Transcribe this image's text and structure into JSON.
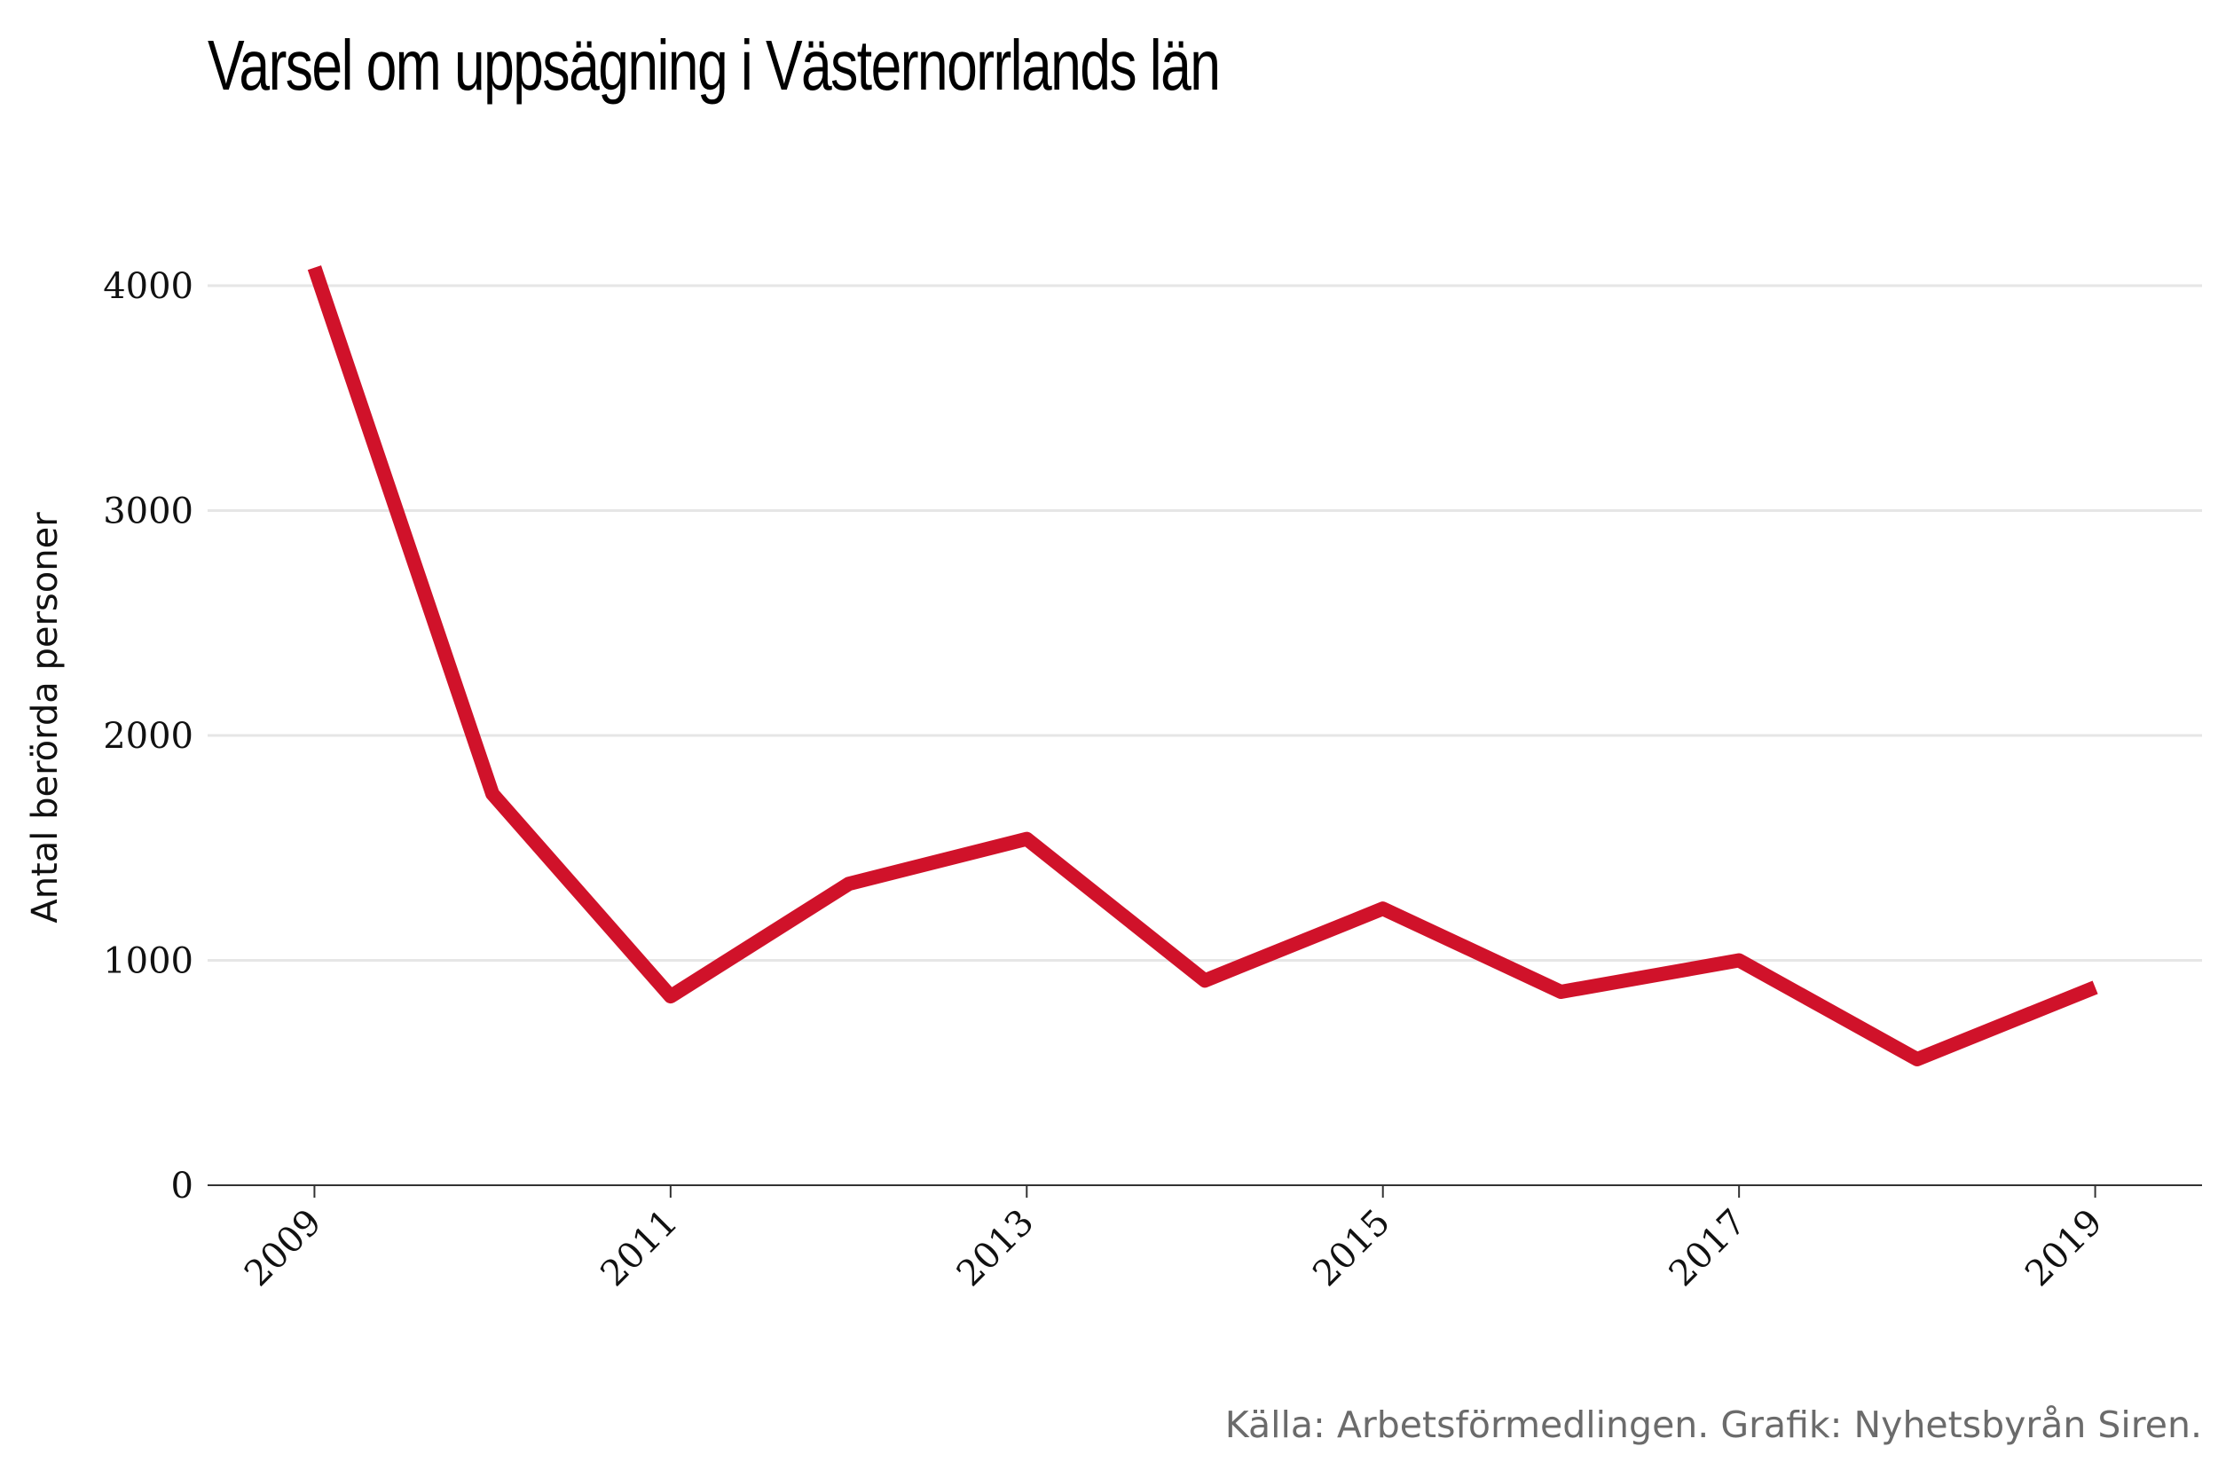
{
  "chart_data": {
    "type": "line",
    "title": "Varsel om uppsägning i Västernorrlands län",
    "ylabel": "Antal berörda personer",
    "xlabel": "",
    "x": [
      2009,
      2010,
      2011,
      2012,
      2013,
      2014,
      2015,
      2016,
      2017,
      2018,
      2019
    ],
    "series": [
      {
        "values": [
          4080,
          1740,
          840,
          1340,
          1540,
          910,
          1230,
          860,
          1000,
          560,
          880
        ],
        "color": "#d0122a"
      }
    ],
    "xlim": [
      2008.4,
      2019.6
    ],
    "ylim": [
      0,
      4000
    ],
    "xticks": [
      2009,
      2011,
      2013,
      2015,
      2017,
      2019
    ],
    "yticks": [
      0,
      1000,
      2000,
      3000,
      4000
    ],
    "grid": "horizontal",
    "gridline_color": "#e6e6e6",
    "source": "Källa: Arbetsförmedlingen. Grafik: Nyhetsbyrån Siren."
  }
}
